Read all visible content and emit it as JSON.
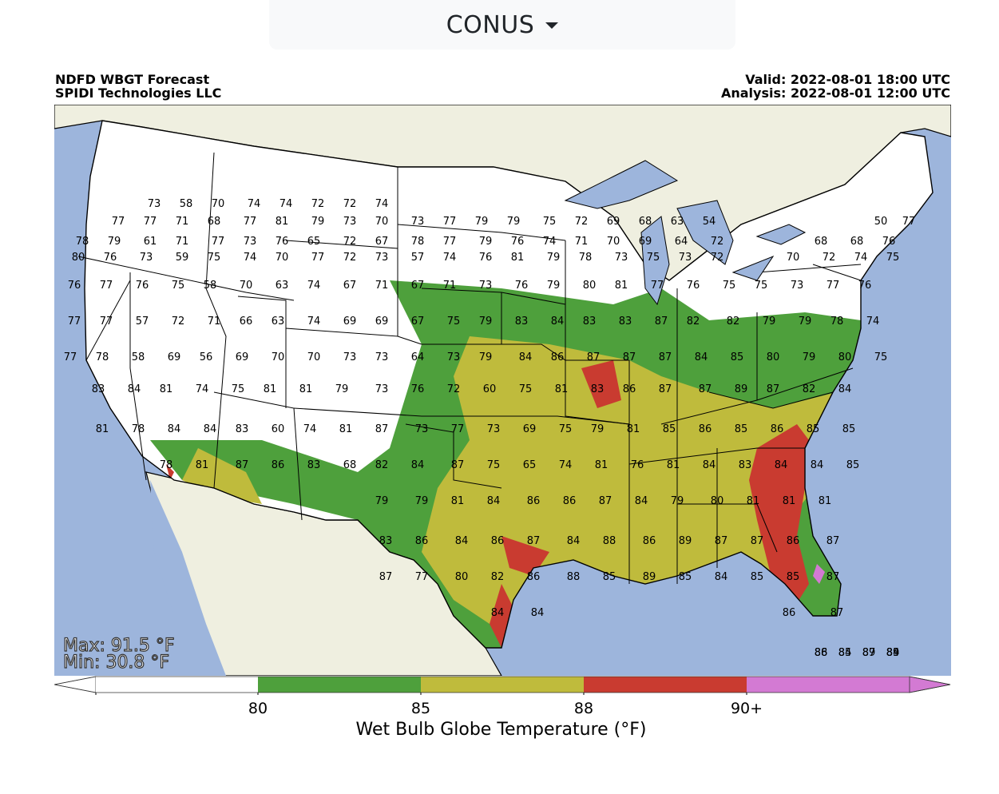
{
  "region_selector": {
    "value": "CONUS"
  },
  "header": {
    "title": "NDFD WBGT Forecast",
    "org": "SPIDI Technologies LLC",
    "valid": "Valid: 2022-08-01 18:00 UTC",
    "analysis": "Analysis: 2022-08-01 12:00 UTC"
  },
  "stats": {
    "max": "Max: 91.5 °F",
    "min": "Min: 30.8 °F"
  },
  "colorbar": {
    "title": "Wet Bulb Globe Temperature (°F)",
    "ticks": [
      "80",
      "85",
      "88",
      "90+"
    ],
    "colors": {
      "below80": "#ffffff",
      "80-85": "#4ea03c",
      "85-88": "#bfbb3c",
      "88-90": "#c93b30",
      "90plus": "#d37ad3"
    }
  },
  "map_colors": {
    "ocean": "#9db5dc",
    "land_foreign": "#efefe0",
    "lakes": "#9db5dc",
    "borders": "#000000"
  },
  "point_values": [
    "73",
    "58",
    "70",
    "74",
    "74",
    "72",
    "72",
    "74",
    "77",
    "77",
    "71",
    "68",
    "77",
    "81",
    "79",
    "73",
    "70",
    "73",
    "77",
    "79",
    "79",
    "75",
    "72",
    "69",
    "68",
    "63",
    "54",
    "50",
    "77",
    "78",
    "79",
    "61",
    "71",
    "77",
    "73",
    "76",
    "65",
    "72",
    "67",
    "78",
    "77",
    "79",
    "76",
    "74",
    "71",
    "70",
    "69",
    "64",
    "72",
    "68",
    "68",
    "76",
    "80",
    "76",
    "73",
    "59",
    "75",
    "74",
    "70",
    "77",
    "72",
    "73",
    "57",
    "74",
    "76",
    "81",
    "79",
    "78",
    "73",
    "75",
    "73",
    "72",
    "70",
    "72",
    "74",
    "75",
    "76",
    "77",
    "76",
    "75",
    "58",
    "70",
    "63",
    "74",
    "67",
    "71",
    "67",
    "71",
    "73",
    "76",
    "79",
    "80",
    "81",
    "77",
    "76",
    "75",
    "75",
    "73",
    "77",
    "76",
    "77",
    "77",
    "57",
    "72",
    "71",
    "66",
    "63",
    "74",
    "69",
    "69",
    "67",
    "75",
    "79",
    "83",
    "84",
    "83",
    "83",
    "87",
    "82",
    "82",
    "79",
    "79",
    "78",
    "74",
    "77",
    "78",
    "58",
    "69",
    "56",
    "69",
    "70",
    "70",
    "73",
    "73",
    "64",
    "73",
    "79",
    "84",
    "86",
    "87",
    "87",
    "87",
    "84",
    "85",
    "80",
    "79",
    "80",
    "75",
    "83",
    "84",
    "81",
    "74",
    "75",
    "81",
    "81",
    "79",
    "73",
    "76",
    "72",
    "60",
    "75",
    "81",
    "83",
    "86",
    "87",
    "87",
    "89",
    "87",
    "82",
    "84",
    "81",
    "78",
    "84",
    "84",
    "83",
    "60",
    "74",
    "81",
    "87",
    "73",
    "77",
    "73",
    "69",
    "75",
    "79",
    "81",
    "85",
    "86",
    "85",
    "86",
    "85",
    "85",
    "78",
    "81",
    "87",
    "86",
    "83",
    "68",
    "82",
    "84",
    "87",
    "75",
    "65",
    "74",
    "81",
    "76",
    "81",
    "84",
    "83",
    "84",
    "84",
    "85",
    "79",
    "79",
    "81",
    "84",
    "86",
    "86",
    "87",
    "84",
    "79",
    "80",
    "81",
    "81",
    "81",
    "83",
    "86",
    "84",
    "86",
    "87",
    "84",
    "88",
    "86",
    "89",
    "87",
    "87",
    "86",
    "87",
    "87",
    "77",
    "80",
    "82",
    "86",
    "88",
    "85",
    "89",
    "85",
    "84",
    "85",
    "85",
    "87",
    "84",
    "84",
    "86",
    "87",
    "85",
    "86",
    "85",
    "89",
    "89",
    "88",
    "84",
    "87",
    "84"
  ]
}
